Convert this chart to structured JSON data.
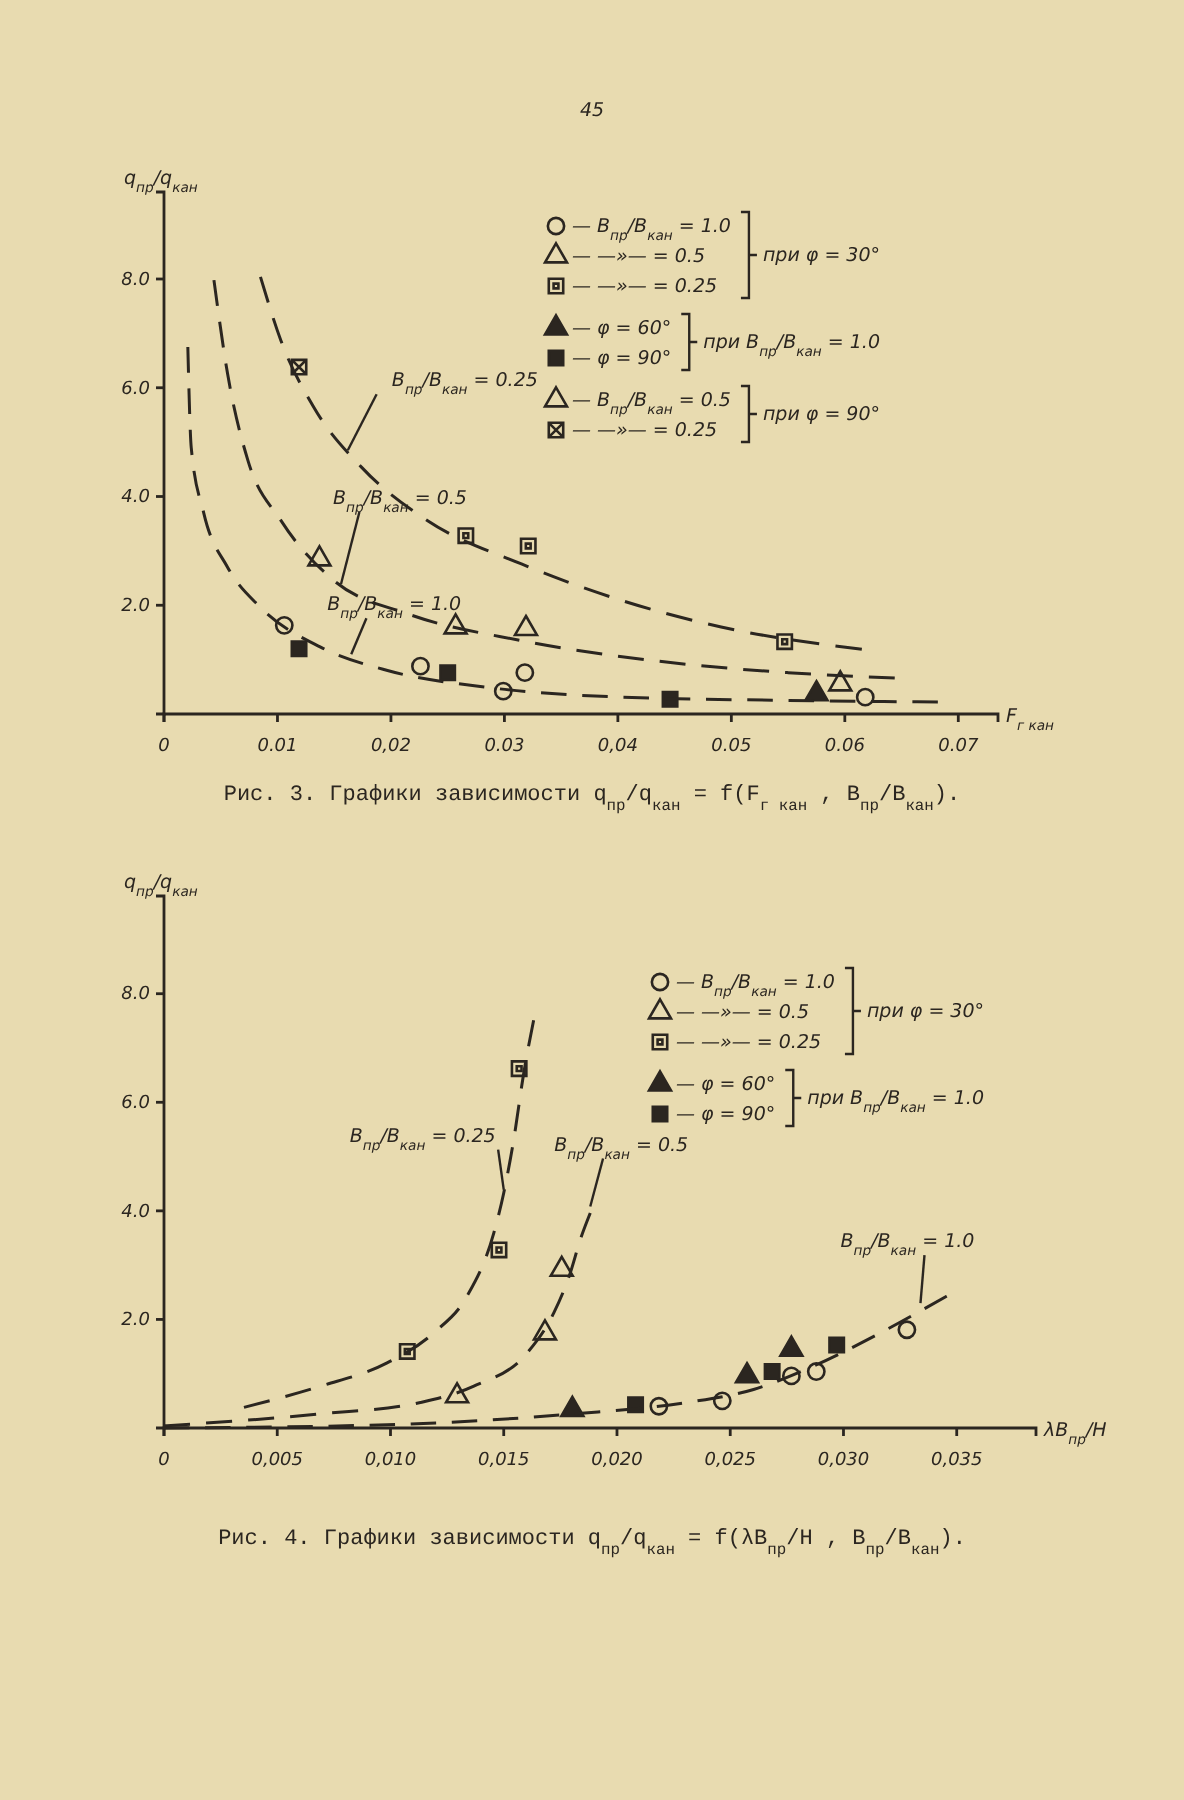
{
  "chart_data": [
    {
      "type": "scatter",
      "title": "Рис. 3. Графики зависимости q$_{пр}$/q$_{кан}$ = f(F$_{г кан}$ , B$_{пр}$/B$_{кан}$).",
      "xlabel": "F$_{г кан}$",
      "ylabel": "q$_{пр}$/q$_{кан}$",
      "xlim": [
        0,
        0.0735
      ],
      "ylim": [
        0,
        9.6
      ],
      "xticks": [
        {
          "value": 0,
          "label": "0"
        },
        {
          "value": 0.01,
          "label": "0.01"
        },
        {
          "value": 0.02,
          "label": "0,02"
        },
        {
          "value": 0.03,
          "label": "0.03"
        },
        {
          "value": 0.04,
          "label": "0,04"
        },
        {
          "value": 0.05,
          "label": "0.05"
        },
        {
          "value": 0.06,
          "label": "0.06"
        },
        {
          "value": 0.07,
          "label": "0.07"
        }
      ],
      "yticks": [
        {
          "value": 2,
          "label": "2.0"
        },
        {
          "value": 4,
          "label": "4.0"
        },
        {
          "value": 6,
          "label": "6.0"
        },
        {
          "value": 8,
          "label": "8.0"
        }
      ],
      "legend": "top right",
      "annotations": [
        "при φ = 30°",
        "при B$_{пр}$/B$_{кан}$ = 1.0",
        "при φ = 90°",
        "45",
        {
          "text": "B$_{пр}$/B$_{кан}$ = 0.25",
          "x": 0.0162,
          "y": 4.85
        },
        {
          "text": "B$_{пр}$/B$_{кан}$ = 0.5",
          "x": 0.0156,
          "y": 2.39
        },
        {
          "text": "B$_{пр}$/B$_{кан}$ = 1.0",
          "x": 0.0165,
          "y": 1.1
        }
      ],
      "series": [
        {
          "name": "— B$_{пр}$/B$_{кан}$ = 1.0",
          "color": "#2b2620",
          "marker": "circle",
          "x": [
            0.0106,
            0.0226,
            0.0299,
            0.0318,
            0.0618
          ],
          "values": [
            1.63,
            0.88,
            0.42,
            0.76,
            0.31
          ]
        },
        {
          "name": "— —»— = 0.5",
          "color": "#2b2620",
          "marker": "triangle",
          "x": [
            0.0137,
            0.0257,
            0.0319
          ],
          "values": [
            2.85,
            1.6,
            1.57
          ]
        },
        {
          "name": "— —»— = 0.25",
          "color": "#2b2620",
          "marker": "square",
          "x": [
            0.0266,
            0.0321,
            0.0547
          ],
          "values": [
            3.28,
            3.09,
            1.33
          ]
        },
        {
          "name": "— φ = 60°",
          "color": "#2b2620",
          "marker": "triangle",
          "x": [
            0.0575
          ],
          "values": [
            0.37
          ]
        },
        {
          "name": "— φ = 90°",
          "color": "#2b2620",
          "marker": "square",
          "x": [
            0.0119,
            0.025,
            0.0446
          ],
          "values": [
            1.2,
            0.76,
            0.27
          ]
        },
        {
          "name": "— B$_{пр}$/B$_{кан}$ = 0.5",
          "color": "#2b2620",
          "marker": "triangle",
          "x": [
            0.0596
          ],
          "values": [
            0.55
          ]
        },
        {
          "name": "— —»— = 0.25",
          "color": "#2b2620",
          "marker": "cross",
          "x": [
            0.0119
          ],
          "values": [
            6.38
          ]
        },
        {
          "type": "line",
          "color": "#2b2620",
          "line_style": "dashed",
          "x": [
            0.0021,
            0.0024,
            0.0035,
            0.0056,
            0.0085,
            0.0138,
            0.0197,
            0.0285,
            0.0403,
            0.055,
            0.0682
          ],
          "values": [
            6.75,
            4.9,
            3.7,
            2.7,
            1.96,
            1.23,
            0.8,
            0.49,
            0.31,
            0.25,
            0.22
          ]
        },
        {
          "type": "line",
          "color": "#2b2620",
          "line_style": "dashed",
          "x": [
            0.0044,
            0.0056,
            0.0074,
            0.0103,
            0.015,
            0.0215,
            0.0315,
            0.0432,
            0.055,
            0.0644
          ],
          "values": [
            7.98,
            6.26,
            4.66,
            3.56,
            2.45,
            1.84,
            1.35,
            0.98,
            0.76,
            0.66
          ]
        },
        {
          "type": "line",
          "color": "#2b2620",
          "line_style": "dashed",
          "x": [
            0.0085,
            0.0103,
            0.0132,
            0.0174,
            0.0232,
            0.0315,
            0.0403,
            0.0491,
            0.0615
          ],
          "values": [
            8.04,
            6.87,
            5.64,
            4.54,
            3.56,
            2.76,
            2.09,
            1.6,
            1.19
          ]
        }
      ]
    },
    {
      "type": "scatter",
      "title": "Рис. 4. Графики зависимости q$_{пр}$/q$_{кан}$ = f(λB$_{пр}$/H , B$_{пр}$/B$_{кан}$).",
      "xlabel": "λB$_{пр}$/H",
      "ylabel": "q$_{пр}$/q$_{кан}$",
      "xlim": [
        0,
        0.0385
      ],
      "ylim": [
        0,
        9.8
      ],
      "xticks": [
        {
          "value": 0,
          "label": "0"
        },
        {
          "value": 0.005,
          "label": "0,005"
        },
        {
          "value": 0.01,
          "label": "0,010"
        },
        {
          "value": 0.015,
          "label": "0,015"
        },
        {
          "value": 0.02,
          "label": "0,020"
        },
        {
          "value": 0.025,
          "label": "0,025"
        },
        {
          "value": 0.03,
          "label": "0,030"
        },
        {
          "value": 0.035,
          "label": "0,035"
        }
      ],
      "yticks": [
        {
          "value": 2,
          "label": "2.0"
        },
        {
          "value": 4,
          "label": "4.0"
        },
        {
          "value": 6,
          "label": "6.0"
        },
        {
          "value": 8,
          "label": "8.0"
        }
      ],
      "legend": "top right",
      "annotations": [
        "при φ = 30°",
        "при B$_{пр}$/B$_{кан}$ = 1.0",
        {
          "text": "B$_{пр}$/B$_{кан}$ = 0.25",
          "x": 0.015,
          "y": 4.39
        },
        {
          "text": "B$_{пр}$/B$_{кан}$ = 0.5",
          "x": 0.01882,
          "y": 4.08
        },
        {
          "text": "B$_{пр}$/B$_{кан}$ = 1.0",
          "x": 0.0334,
          "y": 2.3
        }
      ],
      "series": [
        {
          "name": "— B$_{пр}$/B$_{кан}$ = 1.0",
          "color": "#2b2620",
          "marker": "circle",
          "x": [
            0.02185,
            0.02465,
            0.0277,
            0.0288,
            0.0328
          ],
          "values": [
            0.4,
            0.5,
            0.96,
            1.04,
            1.81
          ]
        },
        {
          "name": "— —»— = 0.5",
          "color": "#2b2620",
          "marker": "triangle",
          "x": [
            0.01294,
            0.01682,
            0.01756
          ],
          "values": [
            0.59,
            1.75,
            2.92
          ]
        },
        {
          "name": "— —»— = 0.25",
          "color": "#2b2620",
          "marker": "square",
          "x": [
            0.01074,
            0.01479,
            0.01568
          ],
          "values": [
            1.41,
            3.28,
            6.62
          ]
        },
        {
          "name": "— φ = 60°",
          "color": "#2b2620",
          "marker": "triangle",
          "x": [
            0.01803,
            0.02574,
            0.0277
          ],
          "values": [
            0.34,
            0.96,
            1.45
          ]
        },
        {
          "name": "— φ = 90°",
          "color": "#2b2620",
          "marker": "square",
          "x": [
            0.02082,
            0.02685,
            0.0297
          ],
          "values": [
            0.43,
            1.04,
            1.53
          ]
        },
        {
          "type": "line",
          "color": "#2b2620",
          "line_style": "dashed",
          "x": [
            0.00353,
            0.00691,
            0.00985,
            0.0119,
            0.01338,
            0.01456,
            0.015,
            0.01544,
            0.01588,
            0.01632
          ],
          "values": [
            0.38,
            0.77,
            1.2,
            1.75,
            2.43,
            3.59,
            4.33,
            5.31,
            6.53,
            7.51
          ]
        },
        {
          "type": "line",
          "color": "#2b2620",
          "line_style": "dashed",
          "x": [
            0,
            0.00691,
            0.01132,
            0.01368,
            0.01603,
            0.01721,
            0.01794,
            0.01838,
            0.01882
          ],
          "values": [
            0.04,
            0.26,
            0.47,
            0.77,
            1.38,
            2.12,
            2.86,
            3.47,
            3.96
          ]
        },
        {
          "type": "line",
          "color": "#2b2620",
          "line_style": "dashed",
          "x": [
            0,
            0.00985,
            0.01809,
            0.02309,
            0.02603,
            0.02868,
            0.03162,
            0.03456
          ],
          "values": [
            0,
            0.06,
            0.26,
            0.47,
            0.71,
            1.14,
            1.75,
            2.43
          ]
        }
      ]
    }
  ]
}
